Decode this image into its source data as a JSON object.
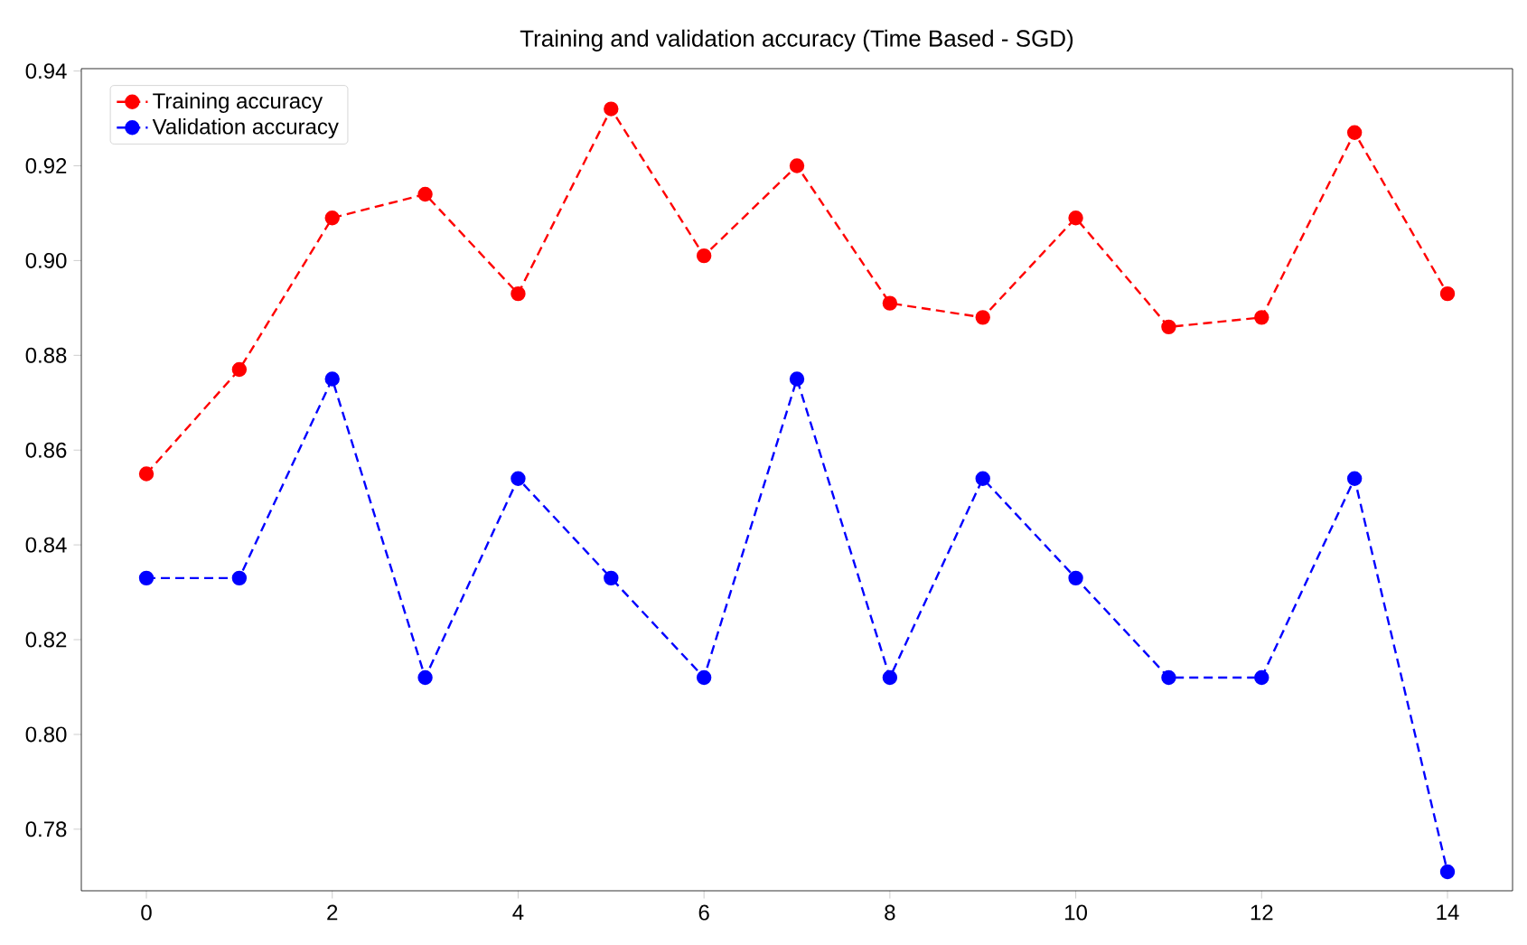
{
  "chart_data": {
    "type": "line",
    "title": "Training and validation accuracy (Time Based - SGD)",
    "x": [
      0,
      1,
      2,
      3,
      4,
      5,
      6,
      7,
      8,
      9,
      10,
      11,
      12,
      13,
      14
    ],
    "series": [
      {
        "name": "Training accuracy",
        "color": "#ff0000",
        "values": [
          0.855,
          0.877,
          0.909,
          0.914,
          0.893,
          0.932,
          0.901,
          0.92,
          0.891,
          0.888,
          0.909,
          0.886,
          0.888,
          0.927,
          0.893
        ]
      },
      {
        "name": "Validation accuracy",
        "color": "#0000ff",
        "values": [
          0.833,
          0.833,
          0.875,
          0.812,
          0.854,
          0.833,
          0.812,
          0.875,
          0.812,
          0.854,
          0.833,
          0.812,
          0.812,
          0.854,
          0.771
        ]
      }
    ],
    "xlim": [
      -0.7,
      14.7
    ],
    "ylim": [
      0.767,
      0.9405
    ],
    "xticks": [
      0,
      2,
      4,
      6,
      8,
      10,
      12,
      14
    ],
    "yticks": [
      0.78,
      {
        "value": 0.8,
        "label": "0.80"
      },
      0.82,
      0.84,
      0.86,
      0.88,
      {
        "value": 0.9,
        "label": "0.90"
      },
      0.92,
      0.94
    ],
    "marker": "circle",
    "line_style": "dashed",
    "legend": "top left",
    "grid": false
  }
}
